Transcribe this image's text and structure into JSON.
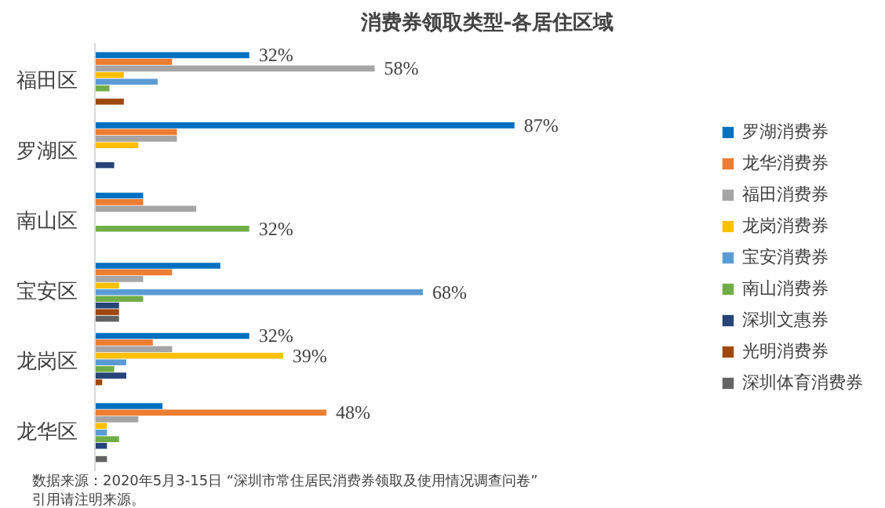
{
  "chart_data": {
    "type": "bar",
    "orientation": "horizontal",
    "title": "消费券领取类型-各居住区域",
    "categories": [
      "福田区",
      "罗湖区",
      "南山区",
      "宝安区",
      "龙岗区",
      "龙华区"
    ],
    "legend": "right",
    "series": [
      {
        "name": "罗湖消费券",
        "color": "#0070c0",
        "values": [
          32,
          87,
          10,
          26,
          32,
          14
        ],
        "value_labels": [
          "32%",
          "87%",
          null,
          null,
          "32%",
          null
        ]
      },
      {
        "name": "龙华消费券",
        "color": "#ed7d31",
        "values": [
          16,
          17,
          10,
          16,
          12,
          48
        ],
        "value_labels": [
          null,
          null,
          null,
          null,
          null,
          "48%"
        ]
      },
      {
        "name": "福田消费券",
        "color": "#a5a5a5",
        "values": [
          58,
          17,
          21,
          10,
          16,
          9
        ],
        "value_labels": [
          "58%",
          null,
          null,
          null,
          null,
          null
        ]
      },
      {
        "name": "龙岗消费券",
        "color": "#ffc000",
        "values": [
          6,
          9,
          0,
          5,
          39,
          2.5
        ],
        "value_labels": [
          null,
          null,
          null,
          null,
          "39%",
          null
        ]
      },
      {
        "name": "宝安消费券",
        "color": "#5b9bd5",
        "values": [
          13,
          0,
          0,
          68,
          6.5,
          2.5
        ],
        "value_labels": [
          null,
          null,
          null,
          "68%",
          null,
          null
        ]
      },
      {
        "name": "南山消费券",
        "color": "#70ad47",
        "values": [
          3,
          0,
          32,
          10,
          4,
          5
        ],
        "value_labels": [
          null,
          null,
          "32%",
          null,
          null,
          null
        ]
      },
      {
        "name": "深圳文惠券",
        "color": "#264478",
        "values": [
          0,
          4,
          0,
          5,
          6.5,
          2.5
        ]
      },
      {
        "name": "光明消费券",
        "color": "#9e480e",
        "values": [
          6,
          0,
          0,
          5,
          1.5,
          0
        ]
      },
      {
        "name": "深圳体育消费券",
        "color": "#636363",
        "values": [
          0,
          0,
          0,
          5,
          0,
          2.5
        ]
      }
    ],
    "annotations": [
      "数据来源：2020年5月3-15日 “深圳市常住居民消费券领取及使用情况调查问卷”",
      "引用请注明来源。"
    ]
  }
}
